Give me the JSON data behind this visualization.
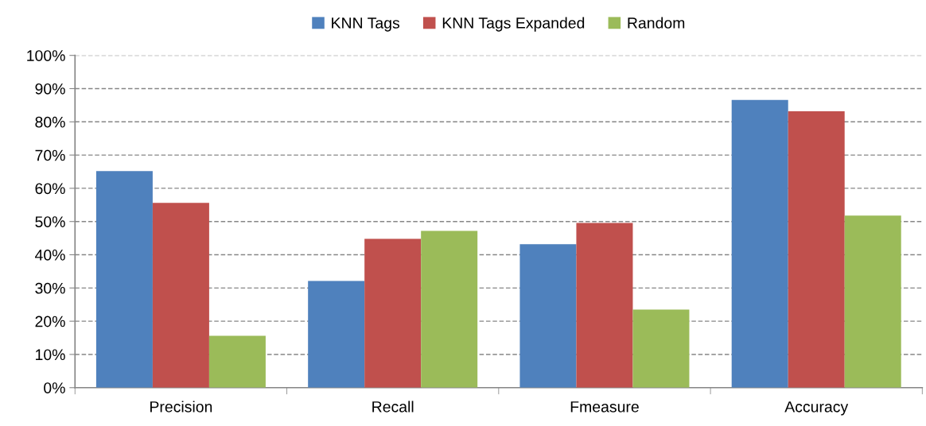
{
  "chart_data": {
    "type": "bar",
    "categories": [
      "Precision",
      "Recall",
      "Fmeasure",
      "Accuracy"
    ],
    "series": [
      {
        "name": "KNN Tags",
        "color": "#4f81bd",
        "values": [
          65.2,
          32.1,
          43.2,
          86.6
        ]
      },
      {
        "name": "KNN Tags Expanded",
        "color": "#c0504d",
        "values": [
          55.6,
          44.8,
          49.6,
          83.2
        ]
      },
      {
        "name": "Random",
        "color": "#9bbb59",
        "values": [
          15.6,
          47.2,
          23.5,
          51.8
        ]
      }
    ],
    "ylim": [
      0,
      100
    ],
    "yticks": [
      {
        "value": 0,
        "label": "0%"
      },
      {
        "value": 10,
        "label": "10%"
      },
      {
        "value": 20,
        "label": "20%"
      },
      {
        "value": 30,
        "label": "30%"
      },
      {
        "value": 40,
        "label": "40%"
      },
      {
        "value": 50,
        "label": "50%"
      },
      {
        "value": 60,
        "label": "60%"
      },
      {
        "value": 70,
        "label": "70%"
      },
      {
        "value": 80,
        "label": "80%"
      },
      {
        "value": 90,
        "label": "90%"
      },
      {
        "value": 100,
        "label": "100%"
      }
    ],
    "grid": "y",
    "legend": "top"
  }
}
